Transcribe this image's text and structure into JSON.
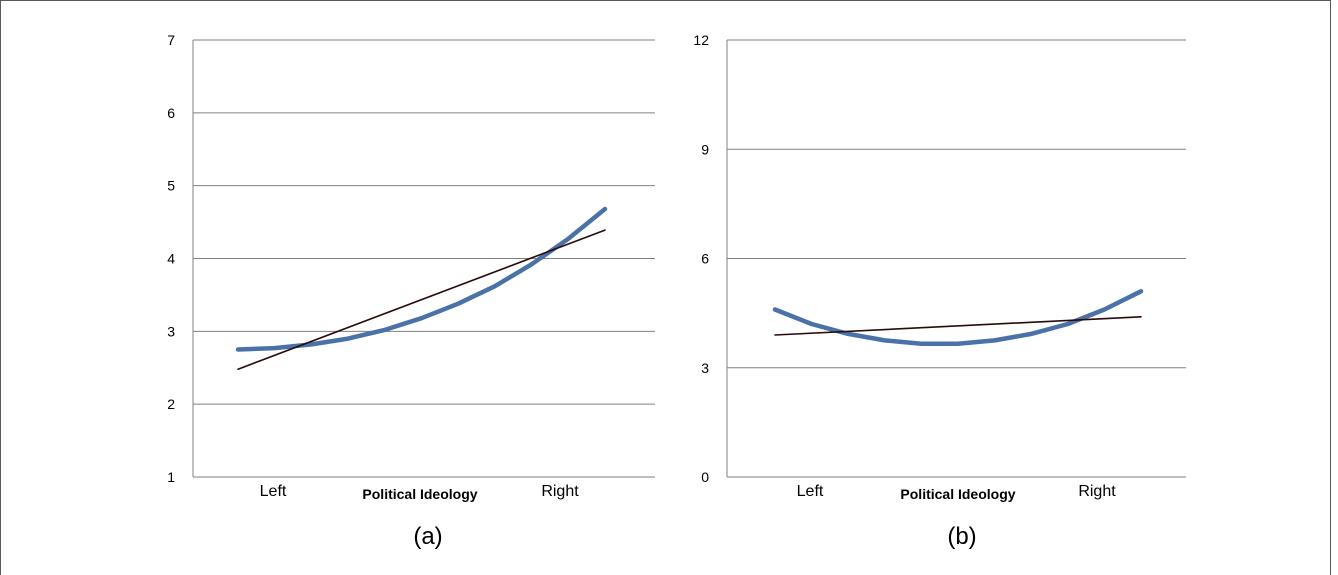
{
  "chart_data": [
    {
      "type": "line",
      "panel_label": "(a)",
      "xlabel": "Political Ideology",
      "ylabel": "",
      "title": "",
      "categories": [
        "Left",
        "Right"
      ],
      "xlim": [
        0,
        1
      ],
      "ylim": [
        1,
        7
      ],
      "yticks": [
        1,
        2,
        3,
        4,
        5,
        6,
        7
      ],
      "grid": "horizontal",
      "series": [
        {
          "style": "thick-curve",
          "color": "#4a72a8",
          "x": [
            0,
            0.1,
            0.2,
            0.3,
            0.4,
            0.5,
            0.6,
            0.7,
            0.8,
            0.9,
            1.0
          ],
          "y": [
            2.75,
            2.77,
            2.82,
            2.9,
            3.02,
            3.18,
            3.38,
            3.62,
            3.92,
            4.27,
            4.68
          ]
        },
        {
          "style": "thin-line",
          "color": "#2b0a0a",
          "x": [
            0,
            1
          ],
          "y": [
            2.48,
            4.39
          ]
        }
      ]
    },
    {
      "type": "line",
      "panel_label": "(b)",
      "xlabel": "Political Ideology",
      "ylabel": "",
      "title": "",
      "categories": [
        "Left",
        "Right"
      ],
      "xlim": [
        0,
        1
      ],
      "ylim": [
        0,
        12
      ],
      "yticks": [
        0,
        3,
        6,
        9,
        12
      ],
      "grid": "horizontal",
      "series": [
        {
          "style": "thick-curve",
          "color": "#4a72a8",
          "x": [
            0,
            0.1,
            0.2,
            0.3,
            0.4,
            0.5,
            0.6,
            0.7,
            0.8,
            0.9,
            1.0
          ],
          "y": [
            4.6,
            4.2,
            3.93,
            3.75,
            3.66,
            3.66,
            3.75,
            3.93,
            4.2,
            4.6,
            5.1
          ]
        },
        {
          "style": "thin-line",
          "color": "#2b0a0a",
          "x": [
            0,
            1
          ],
          "y": [
            3.9,
            4.4
          ]
        }
      ]
    }
  ]
}
